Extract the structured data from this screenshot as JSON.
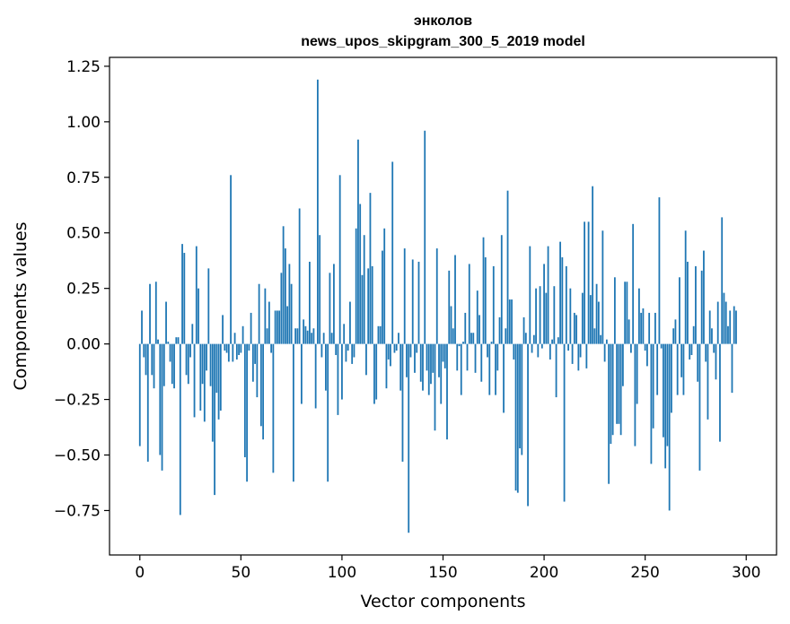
{
  "chart_data": {
    "type": "bar",
    "title": "энколов\nnews_upos_skipgram_300_5_2019 model",
    "xlabel": "Vector components",
    "ylabel": "Components values",
    "xlim": [
      -15,
      315
    ],
    "ylim": [
      -0.95,
      1.29
    ],
    "xticks": [
      0,
      50,
      100,
      150,
      200,
      250,
      300
    ],
    "yticks": [
      -0.75,
      -0.5,
      -0.25,
      0.0,
      0.25,
      0.5,
      0.75,
      1.0,
      1.25
    ],
    "ytick_labels": [
      "−0.75",
      "−0.50",
      "−0.25",
      "0.00",
      "0.25",
      "0.50",
      "0.75",
      "1.00",
      "1.25"
    ],
    "bar_color": "#1f77b4",
    "grid": false,
    "values": [
      -0.46,
      0.15,
      -0.06,
      -0.14,
      -0.53,
      0.27,
      -0.14,
      -0.2,
      0.28,
      0.02,
      -0.5,
      -0.57,
      -0.19,
      0.19,
      0.01,
      -0.08,
      -0.18,
      -0.2,
      0.03,
      0.03,
      -0.77,
      0.45,
      0.41,
      -0.14,
      -0.18,
      -0.06,
      0.09,
      -0.33,
      0.44,
      0.25,
      -0.3,
      -0.18,
      -0.35,
      -0.12,
      0.34,
      -0.19,
      -0.44,
      -0.68,
      -0.22,
      -0.34,
      -0.3,
      0.13,
      -0.03,
      -0.04,
      -0.08,
      0.76,
      -0.08,
      0.05,
      -0.07,
      -0.05,
      -0.04,
      0.08,
      -0.51,
      -0.62,
      -0.03,
      0.14,
      -0.17,
      -0.09,
      -0.24,
      0.27,
      -0.37,
      -0.43,
      0.25,
      0.07,
      0.19,
      -0.04,
      -0.58,
      0.15,
      0.15,
      0.15,
      0.32,
      0.53,
      0.43,
      0.17,
      0.36,
      0.27,
      -0.62,
      0.07,
      0.07,
      0.61,
      -0.27,
      0.11,
      0.08,
      0.06,
      0.37,
      0.05,
      0.07,
      -0.29,
      1.19,
      0.49,
      -0.06,
      0.05,
      -0.21,
      -0.62,
      0.32,
      0.05,
      0.36,
      -0.05,
      -0.32,
      0.76,
      -0.25,
      0.09,
      -0.08,
      -0.03,
      0.19,
      -0.09,
      -0.06,
      0.52,
      0.92,
      0.63,
      0.31,
      0.49,
      -0.14,
      0.34,
      0.68,
      0.35,
      -0.27,
      -0.25,
      0.08,
      0.08,
      0.42,
      0.52,
      -0.2,
      -0.07,
      -0.1,
      0.82,
      -0.04,
      -0.03,
      0.05,
      -0.21,
      -0.53,
      0.43,
      -0.15,
      -0.85,
      -0.06,
      0.38,
      -0.13,
      -0.04,
      0.37,
      -0.17,
      -0.21,
      0.96,
      -0.12,
      -0.23,
      -0.18,
      -0.13,
      -0.39,
      0.43,
      -0.15,
      -0.27,
      -0.08,
      -0.11,
      -0.43,
      0.33,
      0.17,
      0.07,
      0.4,
      -0.12,
      -0.01,
      -0.23,
      0.01,
      0.14,
      -0.12,
      0.36,
      0.05,
      0.05,
      -0.13,
      0.24,
      0.13,
      -0.17,
      0.48,
      0.39,
      -0.06,
      -0.23,
      0.01,
      0.35,
      -0.23,
      -0.12,
      0.12,
      0.49,
      -0.31,
      0.07,
      0.69,
      0.2,
      0.2,
      -0.07,
      -0.66,
      -0.67,
      -0.47,
      -0.5,
      0.12,
      0.05,
      -0.73,
      0.44,
      -0.04,
      0.04,
      0.25,
      -0.06,
      0.26,
      -0.02,
      0.36,
      0.23,
      0.44,
      -0.07,
      0.02,
      0.26,
      -0.24,
      0.03,
      0.46,
      0.39,
      -0.71,
      0.35,
      -0.03,
      0.25,
      -0.09,
      0.14,
      0.13,
      -0.12,
      -0.06,
      0.23,
      0.55,
      -0.11,
      0.55,
      0.22,
      0.71,
      0.07,
      0.27,
      0.19,
      0.04,
      0.51,
      -0.08,
      0.02,
      -0.63,
      -0.45,
      -0.41,
      0.3,
      -0.36,
      -0.36,
      -0.41,
      -0.19,
      0.28,
      0.28,
      0.11,
      -0.04,
      0.54,
      -0.46,
      -0.27,
      0.25,
      0.14,
      0.16,
      -0.03,
      -0.1,
      0.14,
      -0.54,
      -0.38,
      0.14,
      -0.23,
      0.66,
      -0.02,
      -0.42,
      -0.56,
      -0.46,
      -0.75,
      -0.31,
      0.07,
      0.11,
      -0.23,
      0.3,
      -0.15,
      -0.23,
      0.51,
      0.37,
      -0.07,
      -0.05,
      0.08,
      0.35,
      -0.17,
      -0.57,
      0.33,
      0.42,
      -0.08,
      -0.34,
      0.15,
      0.07,
      -0.04,
      -0.16,
      0.19,
      -0.44,
      0.57,
      0.23,
      0.19,
      0.08,
      0.15,
      -0.22,
      0.17,
      0.15
    ]
  }
}
